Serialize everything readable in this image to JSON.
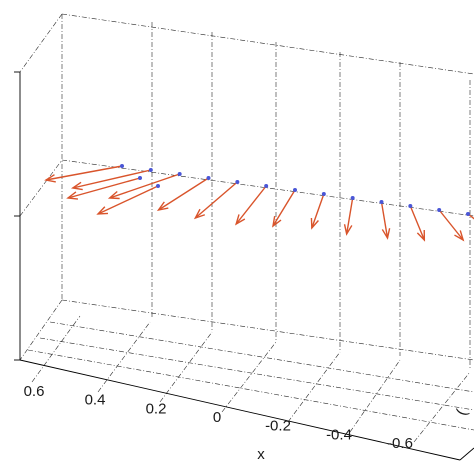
{
  "chart_data": {
    "type": "quiver3d",
    "xlabel": "x",
    "ylabel_partial": "(",
    "x_ticks": [
      "0.6",
      "0.4",
      "0.2",
      "0",
      "-0.2",
      "-0.4",
      "-0.6"
    ],
    "xlim": [
      0.7,
      -0.6
    ],
    "grid": true,
    "colors": {
      "arrow": "#d9542b",
      "point": "#4a56d6",
      "axes": "#000000"
    },
    "points_x": [
      0.6,
      0.5,
      0.4,
      0.3,
      0.2,
      0.1,
      0.0,
      -0.1,
      -0.2,
      -0.3,
      -0.4,
      -0.5,
      -0.6
    ]
  }
}
